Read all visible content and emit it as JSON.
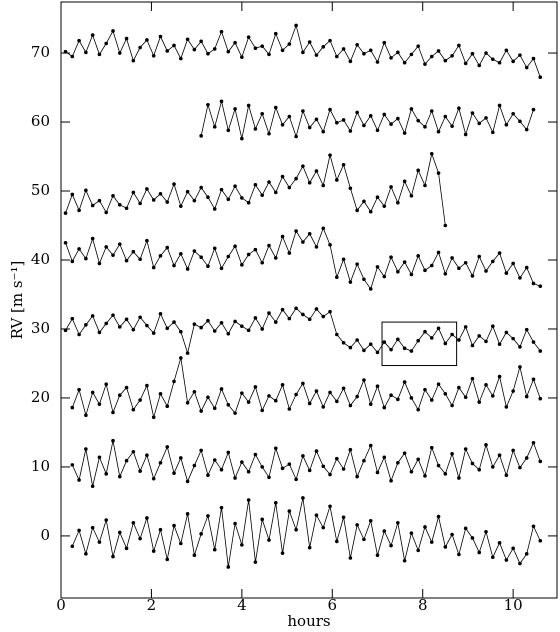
{
  "chart_data": {
    "type": "line",
    "xlabel": "hours",
    "ylabel": "RV [m s⁻¹]",
    "xlim": [
      0,
      10.97
    ],
    "ylim": [
      -9,
      77.4
    ],
    "xticks": [
      0,
      2,
      4,
      6,
      8,
      10
    ],
    "yticks": [
      0,
      10,
      20,
      30,
      40,
      50,
      60,
      70
    ],
    "color": "#000000",
    "annotation_box": {
      "x": [
        7.1,
        8.75
      ],
      "y": [
        24.7,
        31.0
      ]
    },
    "x": [
      0.1,
      0.25,
      0.4,
      0.55,
      0.7,
      0.85,
      1.0,
      1.15,
      1.3,
      1.45,
      1.6,
      1.75,
      1.9,
      2.05,
      2.2,
      2.35,
      2.5,
      2.65,
      2.8,
      2.95,
      3.1,
      3.25,
      3.4,
      3.55,
      3.7,
      3.85,
      4.0,
      4.15,
      4.3,
      4.45,
      4.6,
      4.75,
      4.9,
      5.05,
      5.2,
      5.35,
      5.5,
      5.65,
      5.8,
      5.95,
      6.1,
      6.25,
      6.4,
      6.55,
      6.7,
      6.85,
      7.0,
      7.15,
      7.3,
      7.45,
      7.6,
      7.75,
      7.9,
      8.05,
      8.2,
      8.35,
      8.5,
      8.65,
      8.8,
      8.95,
      9.1,
      9.25,
      9.4,
      9.55,
      9.7,
      9.85,
      10.0,
      10.15,
      10.3,
      10.45,
      10.6
    ],
    "series": [
      {
        "values": [
          70.2,
          69.5,
          71.8,
          70.1,
          72.6,
          69.8,
          71.4,
          73.2,
          70.0,
          72.1,
          68.9,
          70.8,
          71.9,
          69.6,
          72.4,
          70.3,
          71.1,
          69.2,
          72.0,
          70.5,
          71.7,
          69.9,
          70.6,
          73.1,
          70.2,
          71.5,
          69.4,
          72.3,
          70.7,
          71.0,
          69.8,
          72.8,
          70.4,
          71.3,
          74.0,
          70.1,
          71.6,
          69.7,
          70.9,
          71.8,
          69.5,
          70.6,
          68.8,
          71.2,
          69.9,
          70.4,
          68.7,
          71.5,
          69.3,
          70.1,
          68.6,
          69.8,
          71.0,
          68.4,
          69.5,
          70.3,
          68.9,
          69.6,
          71.1,
          68.5,
          69.9,
          68.2,
          70.0,
          69.1,
          68.6,
          70.4,
          68.8,
          69.7,
          67.9,
          69.2,
          66.5
        ]
      },
      {
        "values": [
          null,
          null,
          null,
          null,
          null,
          null,
          null,
          null,
          null,
          null,
          null,
          null,
          null,
          null,
          null,
          null,
          null,
          null,
          null,
          null,
          58.0,
          62.5,
          59.3,
          63.0,
          58.8,
          61.9,
          57.6,
          62.4,
          59.0,
          61.2,
          58.3,
          62.1,
          59.6,
          60.8,
          57.9,
          61.6,
          59.2,
          60.4,
          58.6,
          61.8,
          59.9,
          60.3,
          58.7,
          61.4,
          59.5,
          60.9,
          58.8,
          61.1,
          59.7,
          60.5,
          58.4,
          61.9,
          60.2,
          59.3,
          61.6,
          58.6,
          60.8,
          59.4,
          62.0,
          58.2,
          61.3,
          59.8,
          60.6,
          58.5,
          62.4,
          59.6,
          61.2,
          60.1,
          58.9,
          61.8,
          null
        ]
      },
      {
        "values": [
          46.8,
          49.5,
          47.2,
          50.1,
          47.9,
          48.6,
          46.9,
          49.3,
          48.0,
          47.5,
          49.8,
          48.2,
          50.3,
          48.7,
          49.6,
          48.4,
          51.0,
          47.8,
          49.9,
          48.6,
          50.5,
          49.1,
          47.4,
          50.2,
          48.8,
          50.7,
          49.0,
          48.3,
          50.9,
          49.4,
          51.3,
          49.8,
          52.1,
          50.5,
          51.8,
          53.6,
          51.2,
          52.9,
          50.8,
          55.2,
          51.6,
          53.8,
          50.4,
          47.2,
          48.5,
          47.0,
          49.1,
          47.8,
          50.6,
          48.3,
          51.4,
          49.3,
          53.0,
          50.8,
          55.4,
          52.6,
          45.0,
          null,
          null,
          null,
          null,
          null,
          null,
          null,
          null,
          null,
          null,
          null,
          null,
          null,
          null
        ]
      },
      {
        "values": [
          42.5,
          39.8,
          41.6,
          40.2,
          43.1,
          39.5,
          41.9,
          40.7,
          42.3,
          39.9,
          41.2,
          40.1,
          42.8,
          38.9,
          40.6,
          41.8,
          39.2,
          40.9,
          38.7,
          41.3,
          40.4,
          39.1,
          41.7,
          38.8,
          40.5,
          42.0,
          39.3,
          40.8,
          41.5,
          39.6,
          42.1,
          40.3,
          43.4,
          41.0,
          44.2,
          42.6,
          43.8,
          41.9,
          44.6,
          42.2,
          37.5,
          40.1,
          36.8,
          39.4,
          37.2,
          35.8,
          39.0,
          37.6,
          40.4,
          38.3,
          39.7,
          37.9,
          40.6,
          38.5,
          39.2,
          41.1,
          38.0,
          40.3,
          38.8,
          39.6,
          37.7,
          40.5,
          38.4,
          39.8,
          41.0,
          38.1,
          39.5,
          37.4,
          38.9,
          36.6,
          36.2
        ]
      },
      {
        "values": [
          29.8,
          31.5,
          29.2,
          30.6,
          31.9,
          29.5,
          30.8,
          32.0,
          30.3,
          31.4,
          29.9,
          31.7,
          30.5,
          29.4,
          32.2,
          30.1,
          31.0,
          29.6,
          26.5,
          30.7,
          30.2,
          31.2,
          29.7,
          30.9,
          29.3,
          31.1,
          30.4,
          29.8,
          31.6,
          30.0,
          32.3,
          31.0,
          32.8,
          31.5,
          33.0,
          32.1,
          31.4,
          32.9,
          31.8,
          32.5,
          29.2,
          28.0,
          27.3,
          28.4,
          26.9,
          27.8,
          26.6,
          28.1,
          27.0,
          28.5,
          27.2,
          26.8,
          28.3,
          29.6,
          28.7,
          30.1,
          27.9,
          29.2,
          28.4,
          30.3,
          27.6,
          29.0,
          28.2,
          30.4,
          27.8,
          29.5,
          28.6,
          27.4,
          29.9,
          28.1,
          26.8
        ]
      },
      {
        "values": [
          null,
          18.6,
          21.2,
          17.5,
          20.8,
          19.1,
          22.0,
          17.9,
          20.4,
          21.5,
          18.3,
          19.7,
          21.8,
          17.2,
          20.6,
          18.8,
          22.4,
          25.8,
          19.3,
          20.9,
          18.1,
          20.1,
          18.5,
          21.3,
          19.0,
          17.8,
          20.7,
          19.4,
          21.6,
          18.2,
          20.3,
          19.6,
          21.9,
          18.4,
          20.5,
          22.1,
          19.2,
          21.0,
          18.7,
          20.8,
          19.5,
          21.4,
          18.9,
          20.2,
          22.6,
          19.1,
          21.7,
          18.6,
          20.4,
          19.8,
          22.3,
          20.0,
          18.3,
          21.2,
          19.7,
          22.0,
          20.6,
          18.9,
          21.5,
          20.1,
          22.8,
          19.4,
          21.9,
          20.3,
          23.1,
          18.7,
          21.0,
          24.5,
          20.2,
          22.7,
          19.9
        ]
      },
      {
        "values": [
          null,
          10.3,
          8.1,
          12.6,
          7.2,
          11.4,
          9.0,
          13.8,
          8.6,
          10.9,
          12.2,
          9.4,
          11.7,
          8.3,
          10.6,
          12.9,
          9.1,
          11.3,
          7.9,
          10.2,
          12.4,
          8.8,
          11.0,
          9.6,
          12.1,
          8.4,
          10.7,
          9.3,
          11.8,
          10.0,
          8.5,
          12.7,
          9.8,
          10.4,
          8.2,
          11.6,
          9.5,
          12.3,
          10.1,
          8.9,
          11.2,
          9.7,
          12.5,
          8.6,
          10.9,
          13.1,
          9.2,
          11.4,
          8.0,
          10.6,
          12.0,
          9.3,
          11.1,
          8.7,
          12.8,
          10.2,
          9.0,
          11.9,
          8.4,
          12.6,
          10.5,
          9.6,
          13.2,
          10.0,
          11.7,
          8.8,
          12.4,
          9.9,
          11.3,
          13.5,
          10.8
        ]
      },
      {
        "values": [
          null,
          -1.5,
          0.8,
          -2.6,
          1.2,
          -0.9,
          2.3,
          -3.0,
          0.5,
          -1.8,
          1.9,
          -0.4,
          2.6,
          -2.2,
          0.9,
          -3.4,
          1.5,
          -1.1,
          3.2,
          -2.8,
          0.3,
          2.9,
          -2.0,
          4.1,
          -4.5,
          1.8,
          -1.3,
          5.2,
          -3.8,
          2.4,
          -0.6,
          4.8,
          -2.5,
          3.6,
          0.9,
          5.5,
          -1.7,
          3.0,
          1.2,
          4.3,
          -0.8,
          2.7,
          -3.2,
          1.6,
          -0.5,
          2.2,
          -2.8,
          0.7,
          -1.4,
          1.9,
          -3.6,
          0.4,
          -2.1,
          1.3,
          -0.9,
          2.8,
          -1.6,
          0.2,
          -2.7,
          1.1,
          -0.3,
          -2.4,
          0.6,
          -3.1,
          -1.0,
          -3.5,
          -1.8,
          -4.0,
          -2.6,
          1.4,
          -0.7
        ]
      }
    ]
  }
}
